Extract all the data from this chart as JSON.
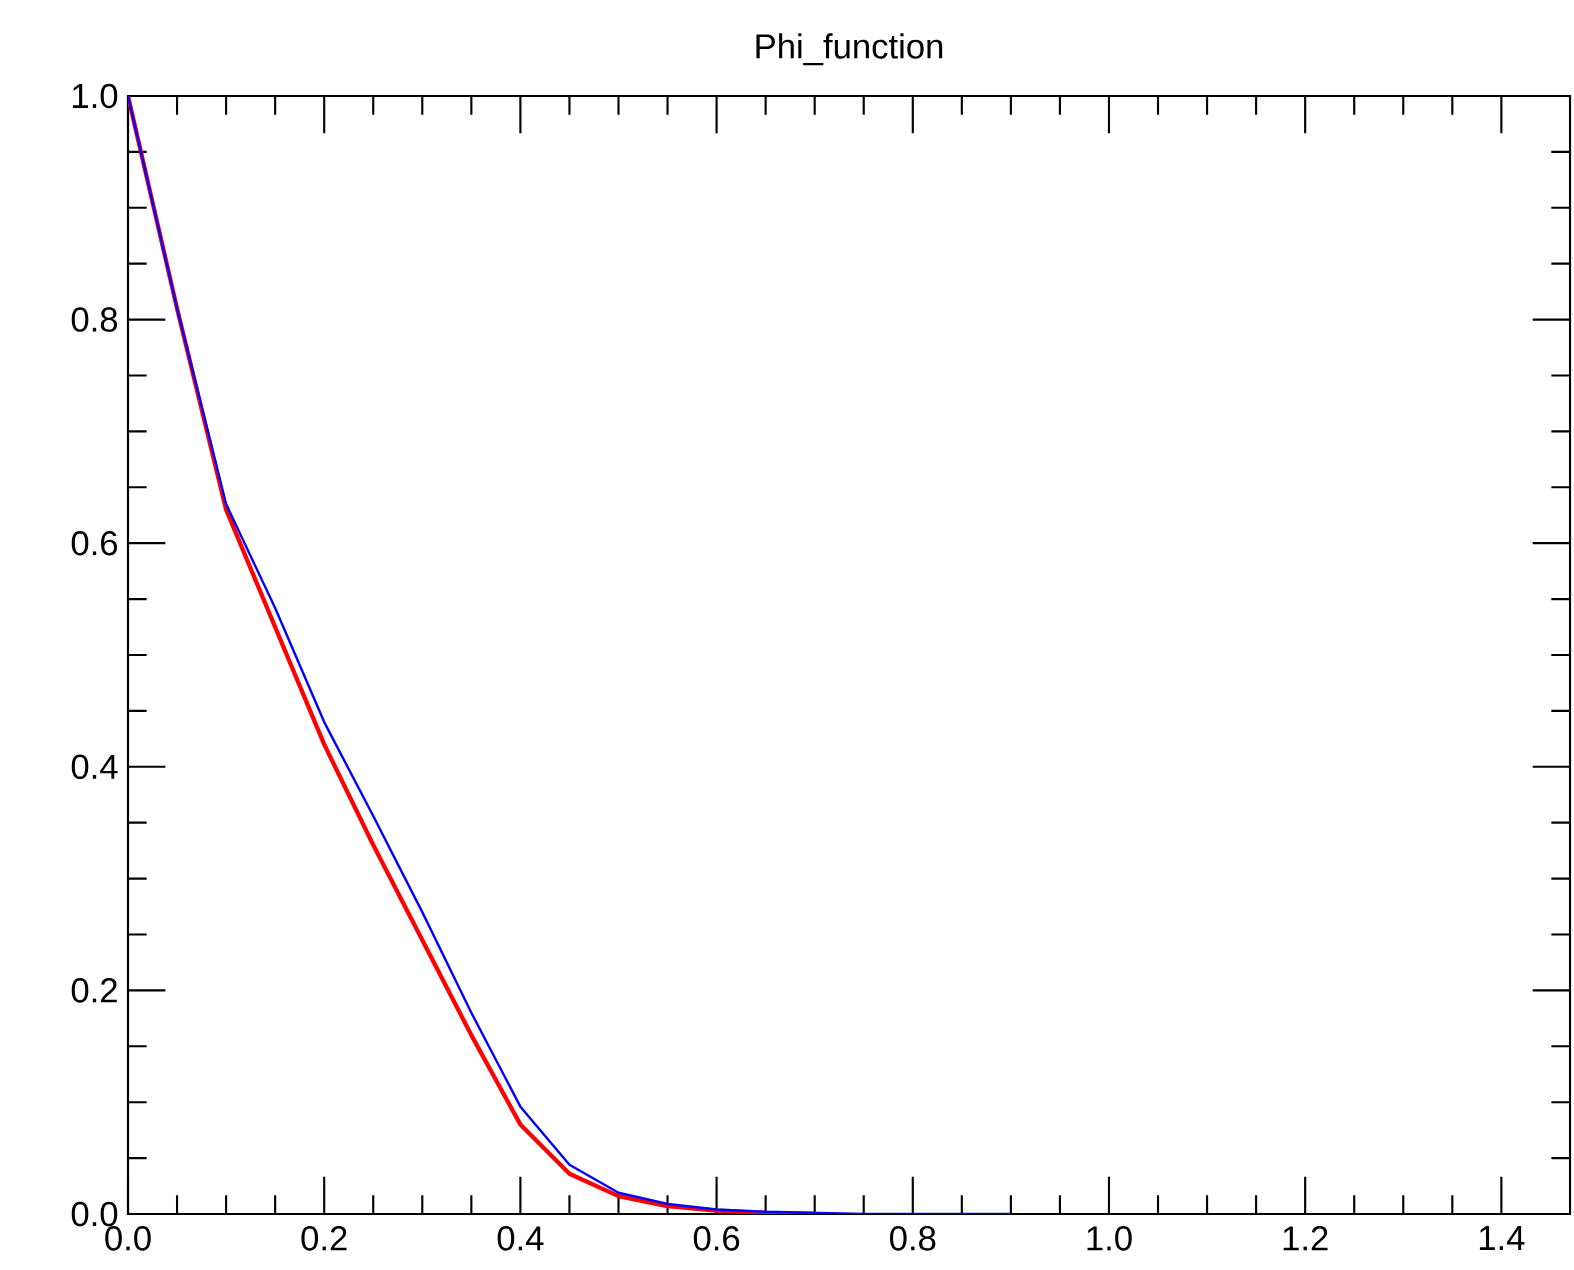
{
  "chart_data": {
    "type": "line",
    "title": "Phi_function",
    "xlim": [
      0,
      1.47
    ],
    "ylim": [
      0,
      1
    ],
    "xticks": [
      {
        "value": 0,
        "label": "0.0"
      },
      0.2,
      0.4,
      0.6,
      0.8,
      {
        "value": 1,
        "label": "1.0"
      },
      1.2,
      1.4
    ],
    "yticks": [
      {
        "value": 0,
        "label": "0.0"
      },
      0.2,
      0.4,
      0.6,
      0.8,
      {
        "value": 1,
        "label": "1.0"
      }
    ],
    "grid": false,
    "series": [
      {
        "color": "#ff0000",
        "x": [
          0,
          0.05,
          0.1,
          0.15,
          0.2,
          0.25,
          0.3,
          0.35,
          0.4,
          0.45,
          0.5,
          0.55,
          0.6,
          0.65,
          0.7
        ],
        "values": [
          1.0,
          0.81,
          0.63,
          0.525,
          0.42,
          0.33,
          0.245,
          0.16,
          0.08,
          0.036,
          0.016,
          0.007,
          0.003,
          0.001,
          0
        ]
      },
      {
        "color": "#0000ff",
        "x": [
          0,
          0.05,
          0.1,
          0.15,
          0.2,
          0.25,
          0.3,
          0.35,
          0.4,
          0.45,
          0.5,
          0.55,
          0.6,
          0.65,
          0.7,
          0.75,
          0.8,
          0.85,
          0.9
        ],
        "values": [
          1.0,
          0.81,
          0.635,
          0.542,
          0.44,
          0.356,
          0.27,
          0.18,
          0.096,
          0.044,
          0.019,
          0.009,
          0.004,
          0.002,
          0.001,
          0,
          0,
          0,
          0
        ]
      }
    ]
  }
}
